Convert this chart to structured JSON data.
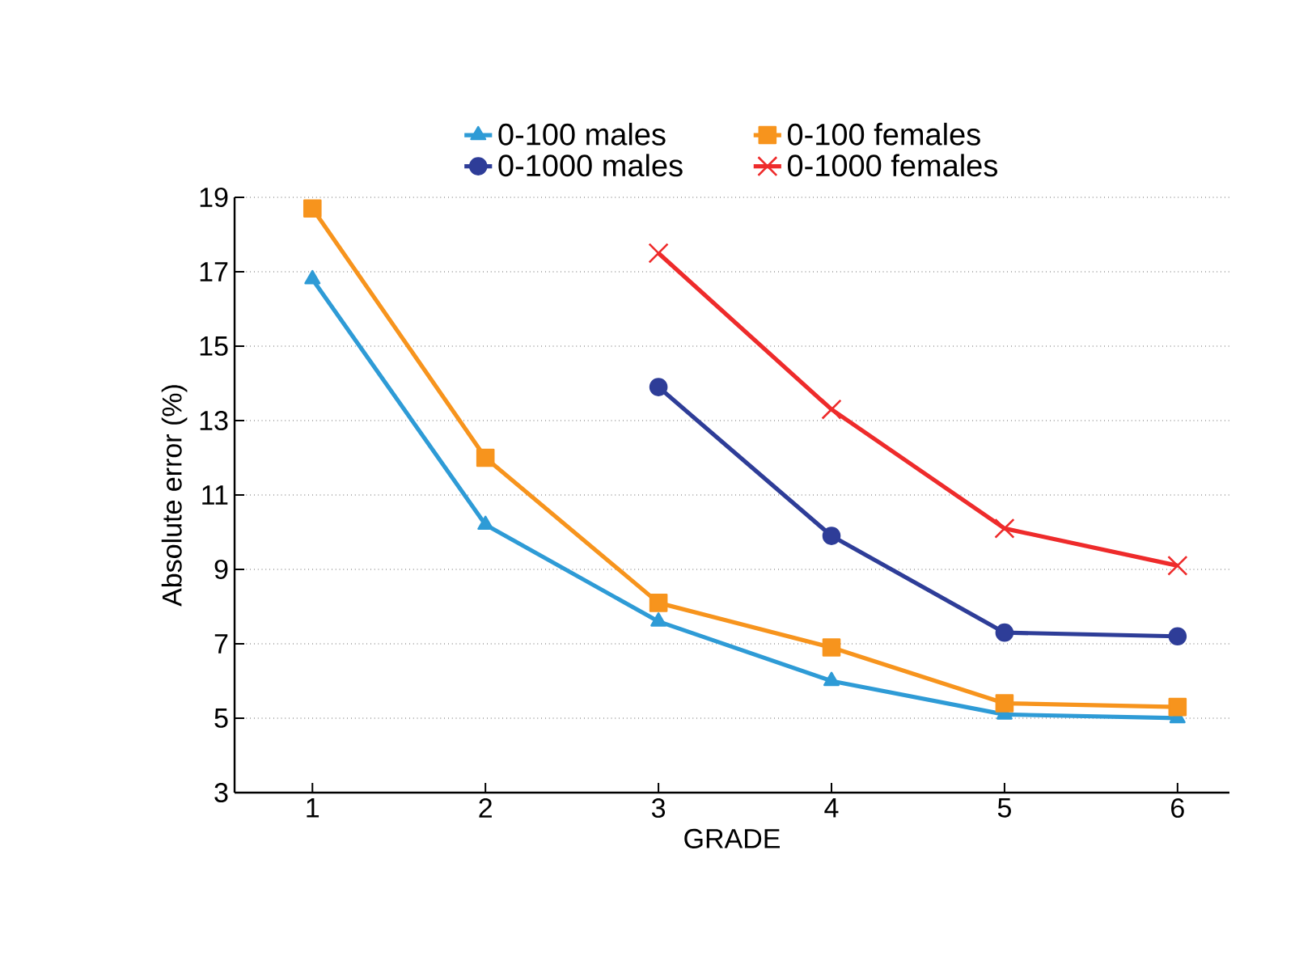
{
  "chart_data": {
    "type": "line",
    "xlabel": "GRADE",
    "ylabel": "Absolute error (%)",
    "categories": [
      "1",
      "2",
      "3",
      "4",
      "5",
      "6"
    ],
    "series": [
      {
        "name": "0-100 males",
        "color": "#2e9bd6",
        "marker": "triangle",
        "values": [
          16.8,
          10.2,
          7.6,
          6.0,
          5.1,
          5.0
        ]
      },
      {
        "name": "0-100 females",
        "color": "#f7941d",
        "marker": "square",
        "values": [
          18.7,
          12.0,
          8.1,
          6.9,
          5.4,
          5.3
        ]
      },
      {
        "name": "0-1000 males",
        "color": "#2e3d98",
        "marker": "circle",
        "values": [
          null,
          null,
          13.9,
          9.9,
          7.3,
          7.2
        ]
      },
      {
        "name": "0-1000 females",
        "color": "#ee2b2b",
        "marker": "cross",
        "values": [
          null,
          null,
          17.5,
          13.3,
          10.1,
          9.1
        ]
      }
    ],
    "ylim": [
      3,
      19
    ],
    "yticks": [
      3,
      5,
      7,
      9,
      11,
      13,
      15,
      17,
      19
    ],
    "grid": "y",
    "legend": "top"
  }
}
